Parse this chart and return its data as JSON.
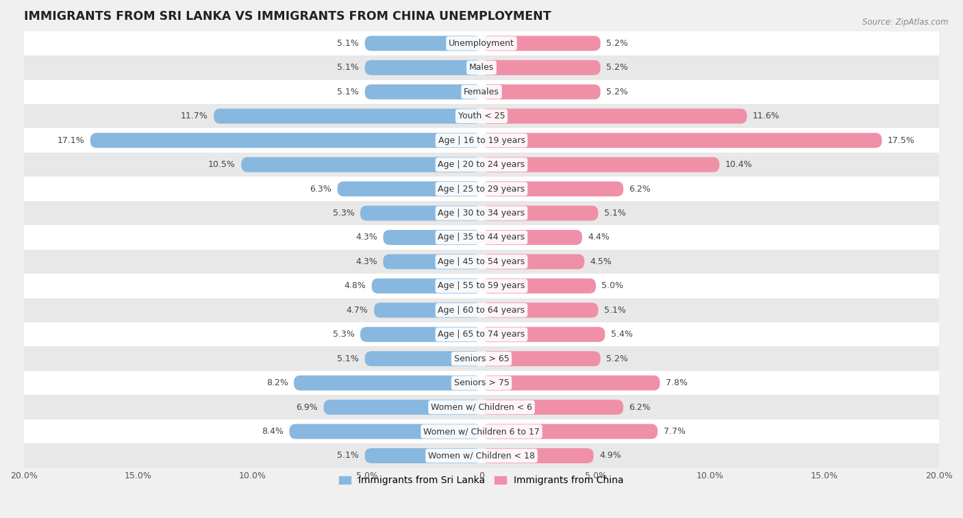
{
  "title": "IMMIGRANTS FROM SRI LANKA VS IMMIGRANTS FROM CHINA UNEMPLOYMENT",
  "source": "Source: ZipAtlas.com",
  "categories": [
    "Unemployment",
    "Males",
    "Females",
    "Youth < 25",
    "Age | 16 to 19 years",
    "Age | 20 to 24 years",
    "Age | 25 to 29 years",
    "Age | 30 to 34 years",
    "Age | 35 to 44 years",
    "Age | 45 to 54 years",
    "Age | 55 to 59 years",
    "Age | 60 to 64 years",
    "Age | 65 to 74 years",
    "Seniors > 65",
    "Seniors > 75",
    "Women w/ Children < 6",
    "Women w/ Children 6 to 17",
    "Women w/ Children < 18"
  ],
  "sri_lanka": [
    5.1,
    5.1,
    5.1,
    11.7,
    17.1,
    10.5,
    6.3,
    5.3,
    4.3,
    4.3,
    4.8,
    4.7,
    5.3,
    5.1,
    8.2,
    6.9,
    8.4,
    5.1
  ],
  "china": [
    5.2,
    5.2,
    5.2,
    11.6,
    17.5,
    10.4,
    6.2,
    5.1,
    4.4,
    4.5,
    5.0,
    5.1,
    5.4,
    5.2,
    7.8,
    6.2,
    7.7,
    4.9
  ],
  "color_sri_lanka": "#88b8e0",
  "color_china": "#f090a8",
  "xlim": 20.0,
  "row_color_light": "#ffffff",
  "row_color_dark": "#e8e8e8",
  "bar_height": 0.62,
  "label_fontsize": 9.0,
  "title_fontsize": 12.5,
  "source_fontsize": 8.5,
  "tick_fontsize": 9.0
}
